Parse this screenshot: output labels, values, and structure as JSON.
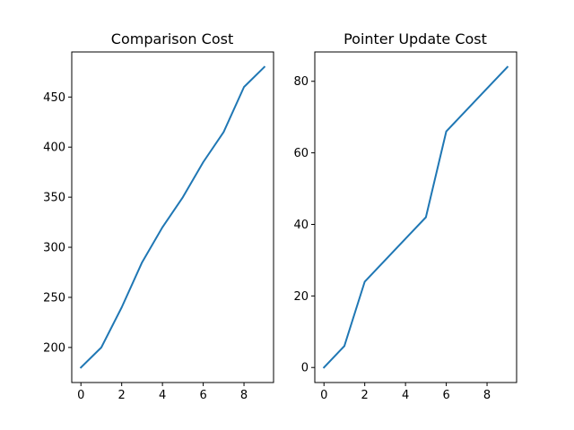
{
  "chart_data": [
    {
      "type": "line",
      "title": "Comparison Cost",
      "xlabel": "",
      "ylabel": "",
      "x": [
        0,
        1,
        2,
        3,
        4,
        5,
        6,
        7,
        8,
        9
      ],
      "series": [
        {
          "values": [
            180,
            200,
            240,
            285,
            320,
            350,
            385,
            415,
            460,
            480
          ]
        }
      ],
      "xlim": [
        -0.45,
        9.45
      ],
      "ylim": [
        165,
        495
      ],
      "xticks": [
        0,
        2,
        4,
        6,
        8
      ],
      "yticks": [
        200,
        250,
        300,
        350,
        400,
        450
      ],
      "grid": false,
      "color": "#1f77b4"
    },
    {
      "type": "line",
      "title": "Pointer Update Cost",
      "xlabel": "",
      "ylabel": "",
      "x": [
        0,
        1,
        2,
        3,
        4,
        5,
        6,
        7,
        8,
        9
      ],
      "series": [
        {
          "values": [
            0,
            6,
            24,
            30,
            36,
            42,
            66,
            72,
            78,
            84
          ]
        }
      ],
      "xlim": [
        -0.45,
        9.45
      ],
      "ylim": [
        -4.2,
        88.2
      ],
      "xticks": [
        0,
        2,
        4,
        6,
        8
      ],
      "yticks": [
        0,
        20,
        40,
        60,
        80
      ],
      "grid": false,
      "color": "#1f77b4"
    }
  ]
}
